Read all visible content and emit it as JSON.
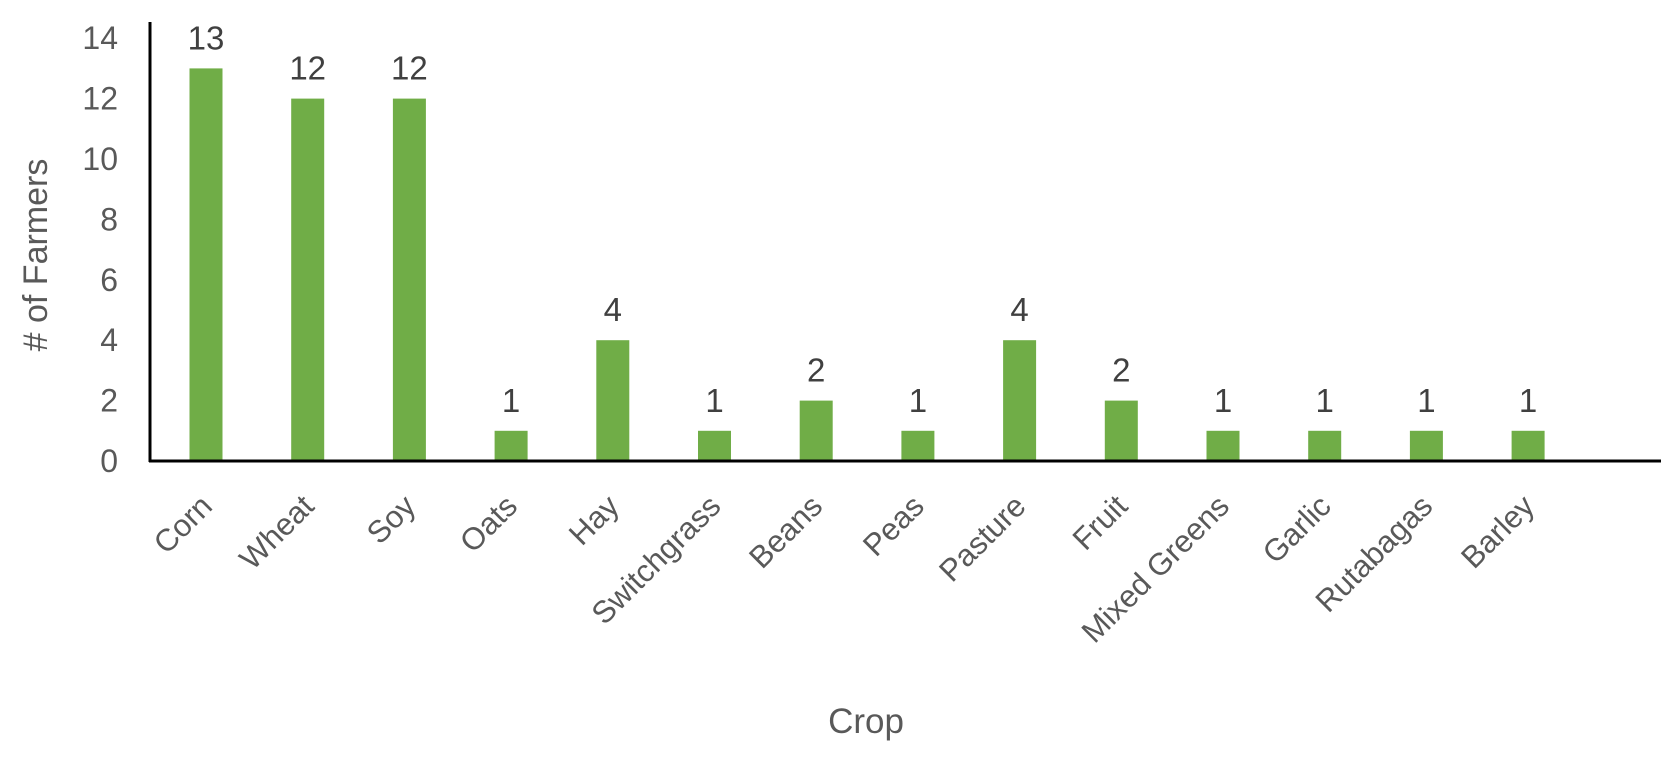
{
  "chart_data": {
    "type": "bar",
    "title": "",
    "xlabel": "Crop",
    "ylabel": "# of Farmers",
    "categories": [
      "Corn",
      "Wheat",
      "Soy",
      "Oats",
      "Hay",
      "Switchgrass",
      "Beans",
      "Peas",
      "Pasture",
      "Fruit",
      "Mixed Greens",
      "Garlic",
      "Rutabagas",
      "Barley"
    ],
    "values": [
      13,
      12,
      12,
      1,
      4,
      1,
      2,
      1,
      4,
      2,
      1,
      1,
      1,
      1
    ],
    "ylim": [
      0,
      14
    ],
    "yticks": [
      0,
      2,
      4,
      6,
      8,
      10,
      12,
      14
    ],
    "grid": false,
    "legend": "none",
    "data_labels": true,
    "colors": {
      "bar": "#70ad47",
      "axis": "#000000",
      "text": "#595959",
      "label": "#404040"
    }
  }
}
